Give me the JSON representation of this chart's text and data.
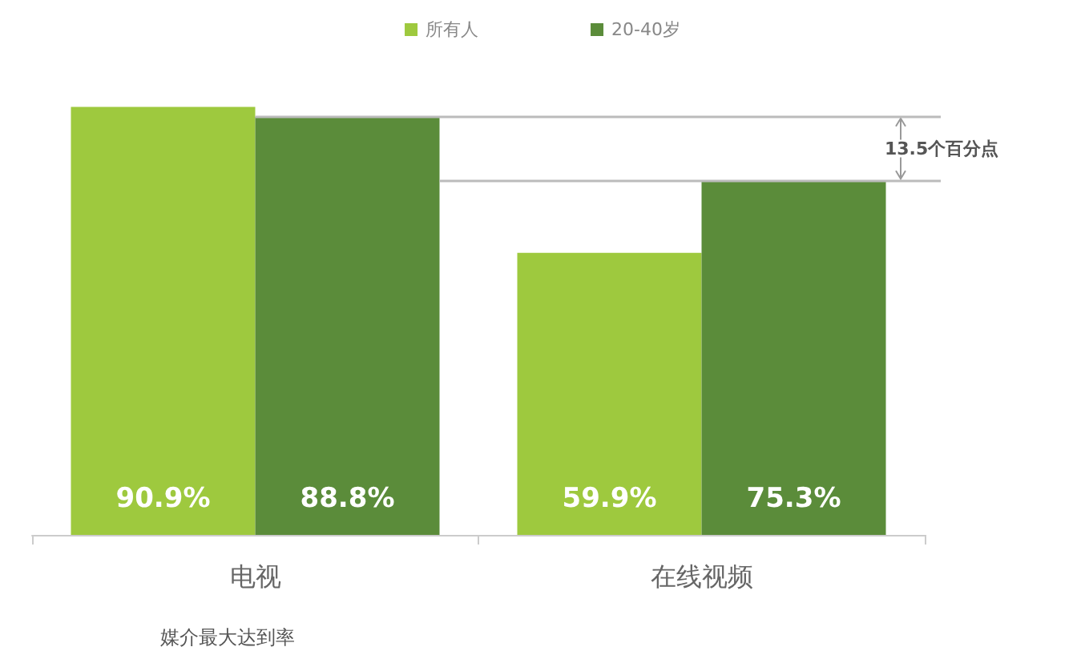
{
  "chart_data": {
    "type": "bar",
    "categories": [
      "电视",
      "在线视频"
    ],
    "series": [
      {
        "name": "所有人",
        "color": "#9ec93e",
        "values": [
          90.9,
          59.9
        ],
        "value_labels": [
          "90.9%",
          "59.9%"
        ]
      },
      {
        "name": "20-40岁",
        "color": "#5b8c3a",
        "values": [
          88.8,
          75.3
        ],
        "value_labels": [
          "88.8%",
          "75.3%"
        ]
      }
    ],
    "xlabel": "媒介最大达到率",
    "ref_lines": [
      {
        "axis": "y",
        "value": 88.8,
        "color": "#bbbbbb"
      },
      {
        "axis": "y",
        "value": 75.3,
        "color": "#bbbbbb"
      }
    ],
    "annotations": [
      "13.5个百分点"
    ],
    "legend": "top"
  }
}
